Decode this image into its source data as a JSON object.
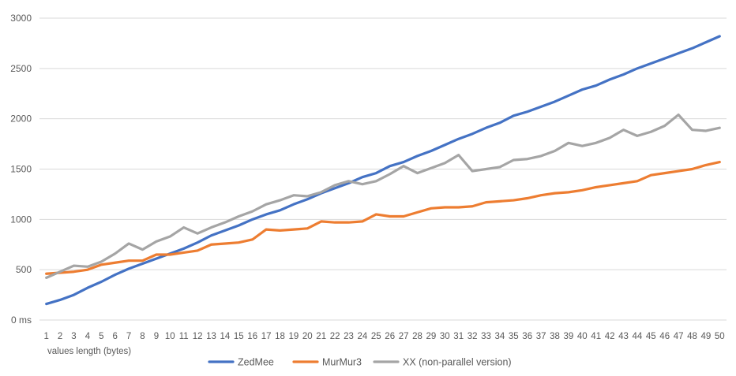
{
  "chart_data": {
    "type": "line",
    "title": "",
    "xlabel": "values length (bytes)",
    "ylabel": "",
    "ylim": [
      0,
      3000
    ],
    "yticks": [
      {
        "value": 0,
        "label": "0 ms"
      },
      {
        "value": 500,
        "label": "500"
      },
      {
        "value": 1000,
        "label": "1000"
      },
      {
        "value": 1500,
        "label": "1500"
      },
      {
        "value": 2000,
        "label": "2000"
      },
      {
        "value": 2500,
        "label": "2500"
      },
      {
        "value": 3000,
        "label": "3000"
      }
    ],
    "categories": [
      "1",
      "2",
      "3",
      "4",
      "5",
      "6",
      "7",
      "8",
      "9",
      "10",
      "11",
      "12",
      "13",
      "14",
      "15",
      "16",
      "17",
      "18",
      "19",
      "20",
      "21",
      "22",
      "23",
      "24",
      "25",
      "26",
      "27",
      "28",
      "29",
      "30",
      "31",
      "32",
      "33",
      "34",
      "35",
      "36",
      "37",
      "38",
      "39",
      "40",
      "41",
      "42",
      "43",
      "44",
      "45",
      "46",
      "47",
      "48",
      "49",
      "50"
    ],
    "grid": true,
    "legend_position": "bottom",
    "series": [
      {
        "name": "ZedMee",
        "color": "#4472C4",
        "values": [
          160,
          200,
          250,
          320,
          380,
          450,
          510,
          560,
          610,
          660,
          710,
          770,
          840,
          890,
          940,
          1000,
          1050,
          1090,
          1150,
          1200,
          1260,
          1310,
          1360,
          1420,
          1460,
          1530,
          1570,
          1630,
          1680,
          1740,
          1800,
          1850,
          1910,
          1960,
          2030,
          2070,
          2120,
          2170,
          2230,
          2290,
          2330,
          2390,
          2440,
          2500,
          2550,
          2600,
          2650,
          2700,
          2760,
          2820
        ]
      },
      {
        "name": "MurMur3",
        "color": "#ED7D31",
        "values": [
          460,
          470,
          480,
          500,
          550,
          570,
          590,
          590,
          650,
          650,
          670,
          690,
          750,
          760,
          770,
          800,
          900,
          890,
          900,
          910,
          980,
          970,
          970,
          980,
          1050,
          1030,
          1030,
          1070,
          1110,
          1120,
          1120,
          1130,
          1170,
          1180,
          1190,
          1210,
          1240,
          1260,
          1270,
          1290,
          1320,
          1340,
          1360,
          1380,
          1440,
          1460,
          1480,
          1500,
          1540,
          1570
        ]
      },
      {
        "name": "XX (non-parallel version)",
        "color": "#A5A5A5",
        "values": [
          420,
          480,
          540,
          530,
          580,
          660,
          760,
          700,
          780,
          830,
          920,
          860,
          920,
          970,
          1030,
          1080,
          1150,
          1190,
          1240,
          1230,
          1270,
          1340,
          1380,
          1350,
          1380,
          1450,
          1530,
          1460,
          1510,
          1560,
          1640,
          1480,
          1500,
          1520,
          1590,
          1600,
          1630,
          1680,
          1760,
          1730,
          1760,
          1810,
          1890,
          1830,
          1870,
          1930,
          2040,
          1890,
          1880,
          1910
        ]
      }
    ]
  }
}
